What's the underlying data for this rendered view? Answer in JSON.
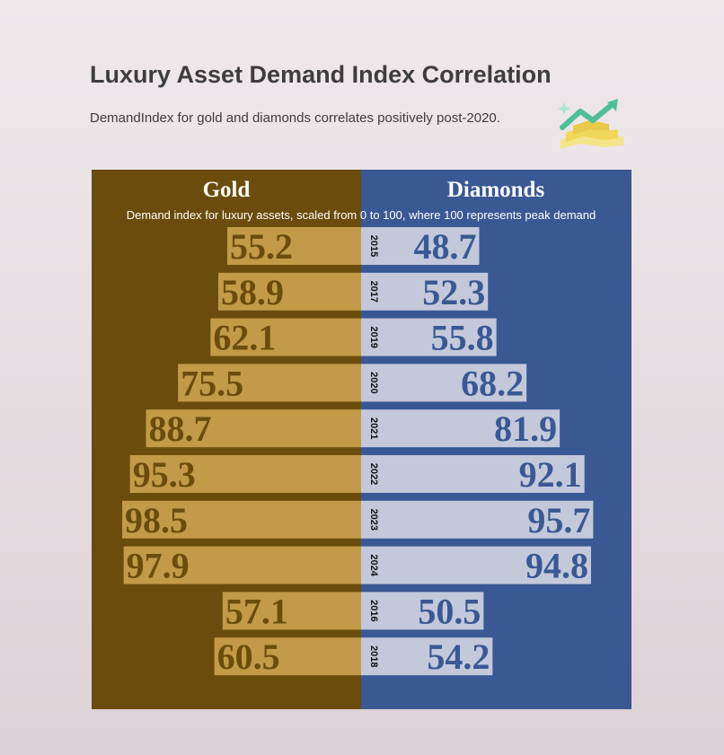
{
  "header": {
    "title": "Luxury Asset Demand Index Correlation",
    "subtitle": "DemandIndex for gold and diamonds correlates positively post-2020.",
    "logo_icon": "trending-up-gold-bars-icon"
  },
  "colors": {
    "gold_panel": "#6b4c0c",
    "gold_bar": "#c29a48",
    "gold_text": "#6b4c0c",
    "diamond_panel": "#3a5893",
    "diamond_bar": "#c3c9db",
    "diamond_text": "#3a5893"
  },
  "chart_data": {
    "type": "bar",
    "orientation": "back-to-back horizontal",
    "categories": [
      "2015",
      "2017",
      "2019",
      "2020",
      "2021",
      "2022",
      "2023",
      "2024",
      "2016",
      "2018"
    ],
    "series": [
      {
        "name": "Gold",
        "values": [
          55.2,
          58.9,
          62.1,
          75.5,
          88.7,
          95.3,
          98.5,
          97.9,
          57.1,
          60.5
        ]
      },
      {
        "name": "Diamonds",
        "values": [
          48.7,
          52.3,
          55.8,
          68.2,
          81.9,
          92.1,
          95.7,
          94.8,
          50.5,
          54.2
        ]
      }
    ],
    "note": "Demand index for luxury assets, scaled from 0 to 100, where 100 represents peak demand",
    "xlim": [
      0,
      100
    ],
    "grid": false,
    "legend": "none"
  }
}
